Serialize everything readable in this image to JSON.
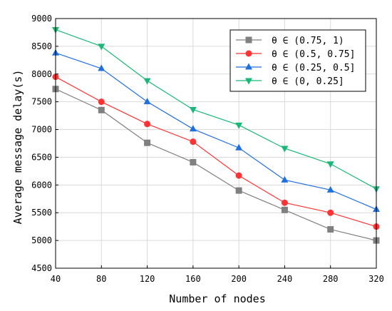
{
  "chart_data": {
    "type": "line",
    "xlabel": "Number of nodes",
    "ylabel": "Average message delay(s)",
    "x": [
      40,
      80,
      120,
      160,
      200,
      240,
      280,
      320
    ],
    "xticks": [
      "40",
      "80",
      "120",
      "160",
      "200",
      "240",
      "280",
      "320"
    ],
    "ylim": [
      4500,
      9000
    ],
    "yticks": [
      "4500",
      "5000",
      "5500",
      "6000",
      "6500",
      "7000",
      "7500",
      "8000",
      "8500",
      "9000"
    ],
    "grid": true,
    "legend_position": "top-right",
    "series": [
      {
        "name": "θ ∈ (0.75, 1)",
        "color": "#808080",
        "marker": "square",
        "values": [
          7730,
          7350,
          6760,
          6410,
          5900,
          5550,
          5200,
          5000
        ]
      },
      {
        "name": "θ ∈ (0.5, 0.75]",
        "color": "#ff3333",
        "marker": "circle",
        "values": [
          7950,
          7500,
          7100,
          6780,
          6170,
          5680,
          5500,
          5250
        ]
      },
      {
        "name": "θ ∈ (0.25, 0.5]",
        "color": "#1f6fe0",
        "marker": "triangle-up",
        "values": [
          8380,
          8100,
          7500,
          7010,
          6670,
          6090,
          5910,
          5560
        ]
      },
      {
        "name": "θ ∈ (0, 0.25]",
        "color": "#18b878",
        "marker": "triangle-down",
        "values": [
          8800,
          8500,
          7880,
          7360,
          7080,
          6660,
          6380,
          5930
        ]
      }
    ]
  }
}
